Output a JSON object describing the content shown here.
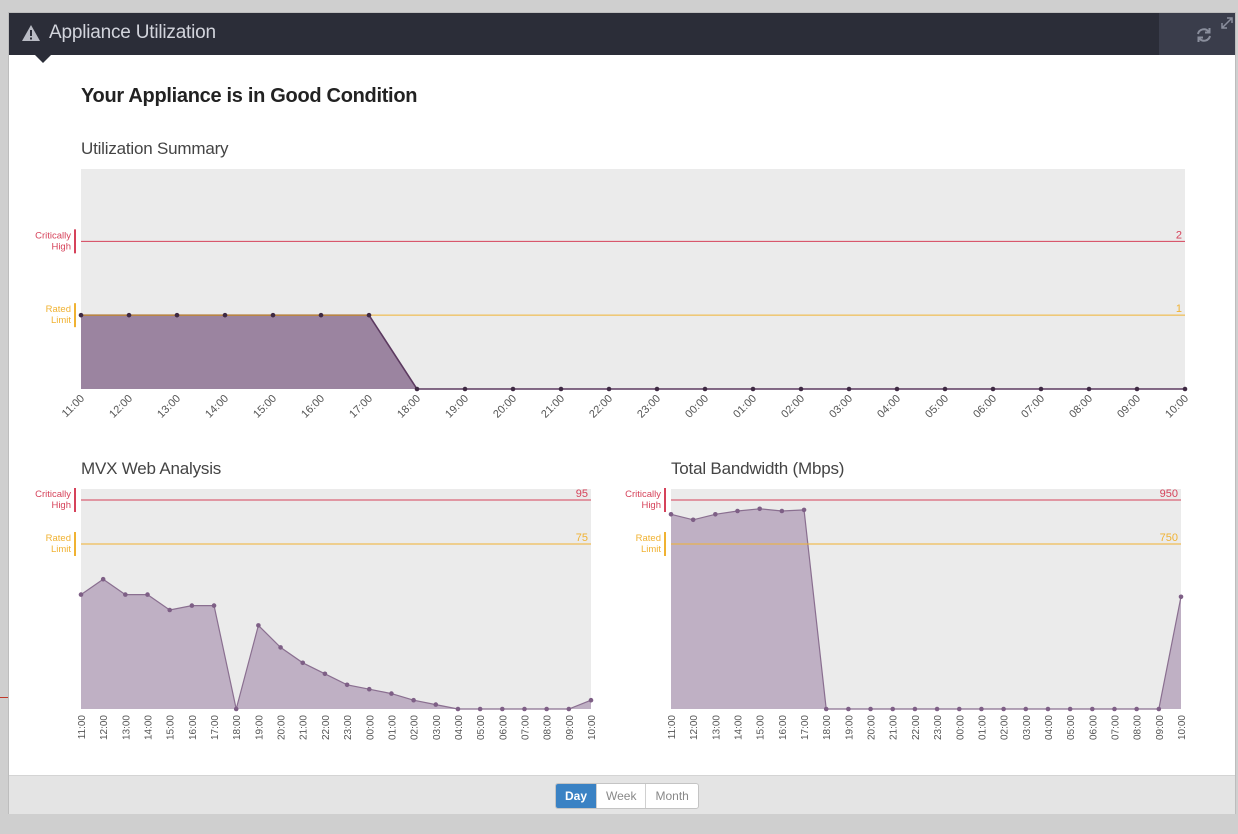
{
  "panel": {
    "title": "Appliance Utilization",
    "status": "Your Appliance is in Good Condition",
    "icons": [
      "warning-icon",
      "refresh-icon",
      "expand-icon"
    ]
  },
  "colors": {
    "critical": "#d6425a",
    "rated": "#f0b232",
    "fill_dark": "#9b84a0",
    "fill_light": "#bfb0c4",
    "line": "#5c3a60",
    "plot_bg": "#ebebeb",
    "active_button": "#3a82c4"
  },
  "thresholds": {
    "critical_label_1": "Critically",
    "critical_label_2": "High",
    "rated_label_1": "Rated",
    "rated_label_2": "Limit"
  },
  "chart_data": [
    {
      "type": "area",
      "title": "Utilization Summary",
      "categories": [
        "11:00",
        "12:00",
        "13:00",
        "14:00",
        "15:00",
        "16:00",
        "17:00",
        "18:00",
        "19:00",
        "20:00",
        "21:00",
        "22:00",
        "23:00",
        "00:00",
        "01:00",
        "02:00",
        "03:00",
        "04:00",
        "05:00",
        "06:00",
        "07:00",
        "08:00",
        "09:00",
        "10:00"
      ],
      "values": [
        1,
        1,
        1,
        1,
        1,
        1,
        1,
        0,
        0,
        0,
        0,
        0,
        0,
        0,
        0,
        0,
        0,
        0,
        0,
        0,
        0,
        0,
        0,
        0
      ],
      "thresholds": {
        "critical": 2,
        "rated": 1
      },
      "ylim": [
        0,
        2.98
      ]
    },
    {
      "type": "area",
      "title": "MVX Web Analysis",
      "categories": [
        "11:00",
        "12:00",
        "13:00",
        "14:00",
        "15:00",
        "16:00",
        "17:00",
        "18:00",
        "19:00",
        "20:00",
        "21:00",
        "22:00",
        "23:00",
        "00:00",
        "01:00",
        "02:00",
        "03:00",
        "04:00",
        "05:00",
        "06:00",
        "07:00",
        "08:00",
        "09:00",
        "10:00"
      ],
      "values": [
        52,
        59,
        52,
        52,
        45,
        47,
        47,
        0,
        38,
        28,
        21,
        16,
        11,
        9,
        7,
        4,
        2,
        0,
        0,
        0,
        0,
        0,
        0,
        4
      ],
      "thresholds": {
        "critical": 95,
        "rated": 75
      },
      "ylim": [
        0,
        100
      ]
    },
    {
      "type": "area",
      "title": "Total Bandwidth (Mbps)",
      "categories": [
        "11:00",
        "12:00",
        "13:00",
        "14:00",
        "15:00",
        "16:00",
        "17:00",
        "18:00",
        "19:00",
        "20:00",
        "21:00",
        "22:00",
        "23:00",
        "00:00",
        "01:00",
        "02:00",
        "03:00",
        "04:00",
        "05:00",
        "06:00",
        "07:00",
        "08:00",
        "09:00",
        "10:00"
      ],
      "values": [
        885,
        860,
        885,
        900,
        910,
        900,
        905,
        0,
        0,
        0,
        0,
        0,
        0,
        0,
        0,
        0,
        0,
        0,
        0,
        0,
        0,
        0,
        0,
        510
      ],
      "thresholds": {
        "critical": 950,
        "rated": 750
      },
      "ylim": [
        0,
        1000
      ]
    }
  ],
  "range_toggle": {
    "options": [
      "Day",
      "Week",
      "Month"
    ],
    "selected": "Day"
  }
}
